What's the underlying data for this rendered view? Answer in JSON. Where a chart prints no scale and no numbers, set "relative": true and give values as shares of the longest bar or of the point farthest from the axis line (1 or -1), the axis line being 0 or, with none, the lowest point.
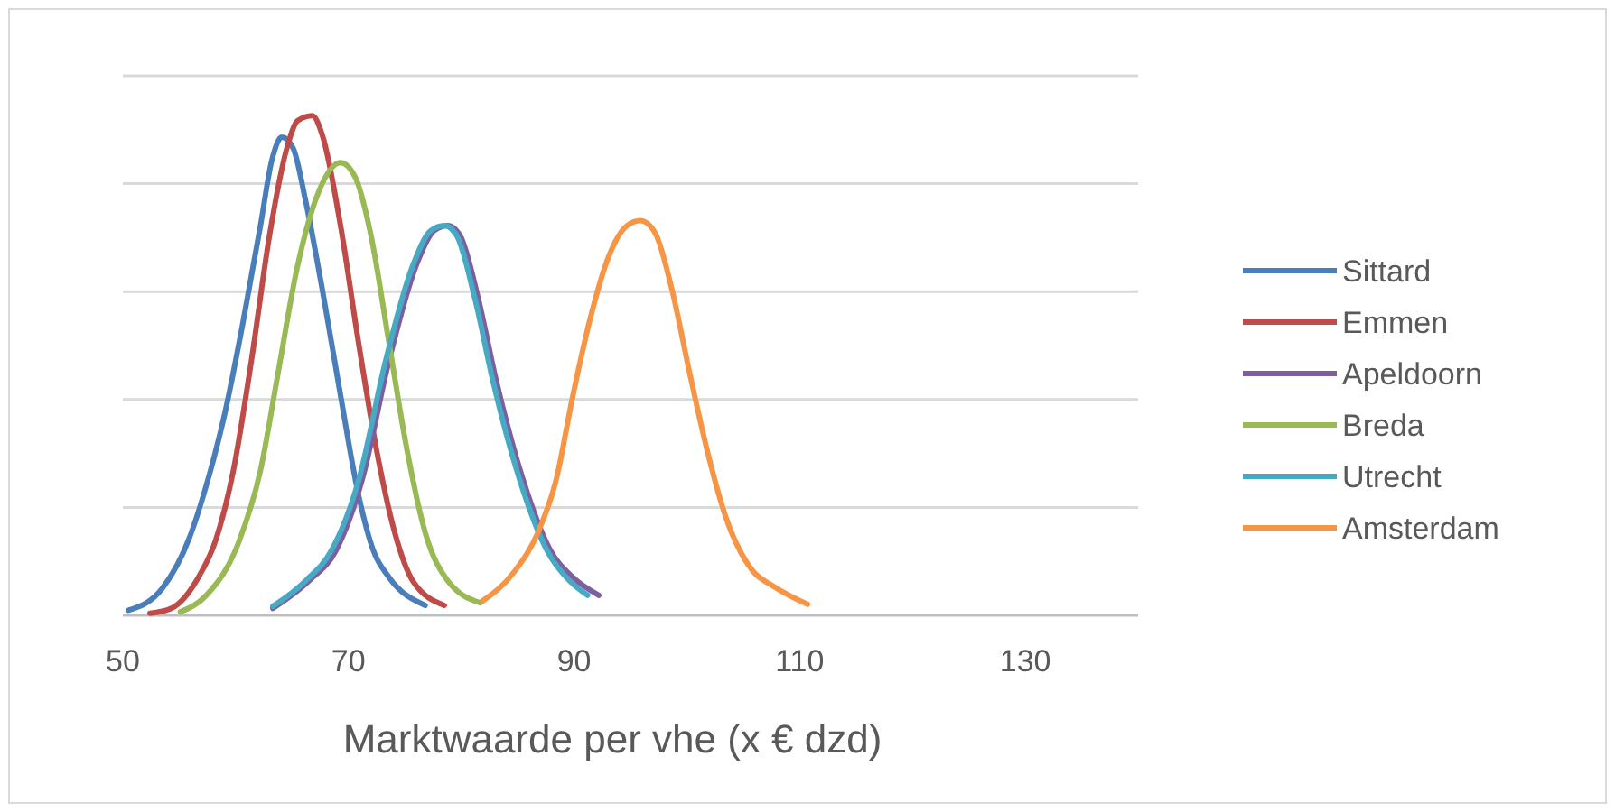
{
  "chart_data": {
    "type": "line",
    "relative": true,
    "xlabel": "Marktwaarde per vhe (x € dzd)",
    "xlim": [
      50,
      140
    ],
    "xticks": [
      50,
      70,
      90,
      110,
      130
    ],
    "grid": "y",
    "legend": "right",
    "marker": "none",
    "line_style": "solid",
    "series": [
      {
        "name": "Sittard",
        "color": "#4a7ebb",
        "x": [
          50.5,
          53.5,
          55.9,
          57.4,
          59,
          60.6,
          62.2,
          63.2,
          64.1,
          65.1,
          66.2,
          67.7,
          69.3,
          70.9,
          72.2,
          73.6,
          76.8
        ],
        "values": [
          0.01,
          0.054,
          0.155,
          0.26,
          0.4,
          0.58,
          0.78,
          0.91,
          0.957,
          0.935,
          0.83,
          0.65,
          0.44,
          0.24,
          0.13,
          0.076,
          0.02
        ]
      },
      {
        "name": "Emmen",
        "color": "#be4b48",
        "x": [
          52.4,
          54.3,
          56.7,
          58.2,
          59.8,
          61.4,
          63,
          64.6,
          65.5,
          66.8,
          67.7,
          69.3,
          70.9,
          72.5,
          74.1,
          75.7,
          78.5
        ],
        "values": [
          0.004,
          0.014,
          0.076,
          0.148,
          0.29,
          0.51,
          0.76,
          0.94,
          0.99,
          1,
          0.96,
          0.78,
          0.545,
          0.33,
          0.166,
          0.069,
          0.02
        ]
      },
      {
        "name": "Apeldoorn",
        "color": "#7d5fa0",
        "x": [
          63.3,
          66.5,
          68.9,
          71.2,
          73.6,
          76,
          77.6,
          78.8,
          79.9,
          81.5,
          83.1,
          85.5,
          87.9,
          89.9,
          92.2
        ],
        "values": [
          0.014,
          0.069,
          0.13,
          0.27,
          0.51,
          0.7,
          0.77,
          0.78,
          0.76,
          0.635,
          0.47,
          0.27,
          0.13,
          0.076,
          0.04
        ]
      },
      {
        "name": "Breda",
        "color": "#98b954",
        "x": [
          55.1,
          57.4,
          60.3,
          62.2,
          63.8,
          65.4,
          67.4,
          69.3,
          70.6,
          72,
          73.6,
          75.2,
          76.8,
          78.8,
          81.7
        ],
        "values": [
          0.007,
          0.04,
          0.148,
          0.29,
          0.49,
          0.69,
          0.85,
          0.906,
          0.877,
          0.76,
          0.545,
          0.33,
          0.166,
          0.069,
          0.025
        ]
      },
      {
        "name": "Utrecht",
        "color": "#46aac5",
        "x": [
          63.3,
          66.2,
          68.5,
          70.9,
          73.3,
          75.7,
          77.3,
          78.5,
          79.6,
          81.2,
          82.8,
          85.2,
          87.6,
          89.6,
          91.2
        ],
        "values": [
          0.018,
          0.069,
          0.13,
          0.27,
          0.51,
          0.7,
          0.77,
          0.78,
          0.76,
          0.635,
          0.47,
          0.27,
          0.13,
          0.069,
          0.04
        ]
      },
      {
        "name": "Amsterdam",
        "color": "#f69545",
        "x": [
          81.9,
          84.7,
          86.8,
          88.4,
          89.9,
          91.5,
          93.1,
          94.7,
          95.9,
          97.2,
          98.7,
          100.2,
          101.8,
          103.4,
          105.8,
          107.7,
          110.7
        ],
        "values": [
          0.029,
          0.087,
          0.166,
          0.27,
          0.44,
          0.6,
          0.72,
          0.78,
          0.79,
          0.765,
          0.65,
          0.49,
          0.33,
          0.2,
          0.09,
          0.058,
          0.022
        ]
      }
    ]
  }
}
